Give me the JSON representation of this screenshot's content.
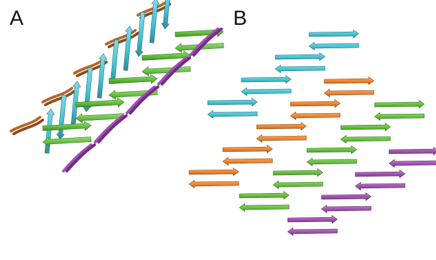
{
  "panels": [
    {
      "label": "A"
    },
    {
      "label": "B"
    }
  ],
  "colors": {
    "cyan": "#43c6d6",
    "green": "#63c23a",
    "orange": "#f0832a",
    "purple": "#a14fb0",
    "brown": "#b8652a",
    "dark_purple": "#6f2c86"
  },
  "panel_b_rows": [
    {
      "index": 1,
      "strands": [
        "cyan"
      ]
    },
    {
      "index": 2,
      "strands": [
        "cyan",
        "orange"
      ]
    },
    {
      "index": 3,
      "strands": [
        "cyan",
        "orange",
        "green"
      ]
    },
    {
      "index": 4,
      "strands": [
        "cyan",
        "orange",
        "green"
      ]
    },
    {
      "index": 5,
      "strands": [
        "orange",
        "green",
        "purple"
      ]
    },
    {
      "index": 6,
      "strands": [
        "orange",
        "green",
        "purple"
      ]
    },
    {
      "index": 7,
      "strands": [
        "green",
        "purple"
      ]
    },
    {
      "index": 8,
      "strands": [
        "purple"
      ]
    }
  ]
}
